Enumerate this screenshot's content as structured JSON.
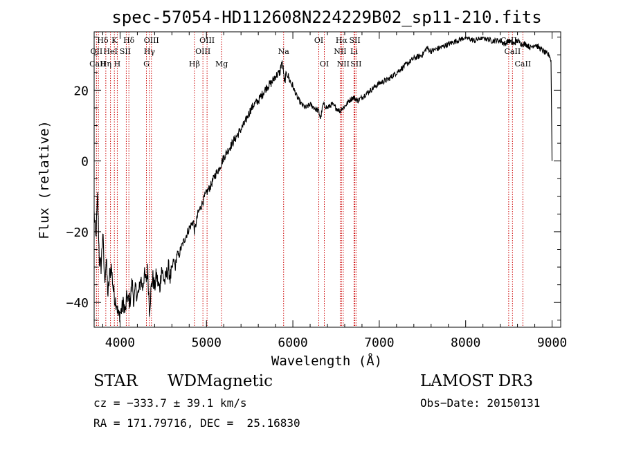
{
  "chart_data": {
    "type": "line",
    "title": "spec-57054-HD112608N224229B02_sp11-210.fits",
    "xlabel": "Wavelength (Å)",
    "ylabel": "Flux (relative)",
    "xlim": [
      3700,
      9100
    ],
    "ylim": [
      -47,
      36.5
    ],
    "x_ticks": [
      4000,
      5000,
      6000,
      7000,
      8000,
      9000
    ],
    "x_tick_labels": [
      "4000",
      "5000",
      "6000",
      "7000",
      "8000",
      "9000"
    ],
    "y_ticks": [
      -40,
      -20,
      0,
      20
    ],
    "y_tick_labels": [
      "−40",
      "−20",
      "0",
      "20"
    ],
    "grid": false,
    "series": [
      {
        "name": "spectrum",
        "color": "#000000",
        "x": [
          3700,
          3720,
          3740,
          3760,
          3780,
          3800,
          3820,
          3840,
          3860,
          3880,
          3900,
          3920,
          3940,
          3960,
          3980,
          4000,
          4020,
          4040,
          4060,
          4080,
          4100,
          4120,
          4140,
          4160,
          4180,
          4200,
          4220,
          4240,
          4260,
          4280,
          4300,
          4320,
          4340,
          4360,
          4380,
          4400,
          4420,
          4440,
          4460,
          4480,
          4500,
          4520,
          4540,
          4560,
          4580,
          4600,
          4620,
          4640,
          4660,
          4680,
          4700,
          4750,
          4800,
          4850,
          4861,
          4900,
          4950,
          5000,
          5050,
          5100,
          5150,
          5200,
          5250,
          5300,
          5350,
          5400,
          5450,
          5500,
          5550,
          5600,
          5650,
          5700,
          5750,
          5800,
          5850,
          5870,
          5890,
          5900,
          5910,
          5930,
          5960,
          6000,
          6050,
          6100,
          6150,
          6200,
          6250,
          6300,
          6320,
          6350,
          6400,
          6450,
          6500,
          6550,
          6563,
          6580,
          6620,
          6650,
          6700,
          6750,
          6800,
          6850,
          6900,
          6950,
          7000,
          7100,
          7200,
          7300,
          7400,
          7500,
          7550,
          7600,
          7700,
          7800,
          7900,
          8000,
          8100,
          8200,
          8300,
          8400,
          8450,
          8500,
          8550,
          8600,
          8650,
          8700,
          8750,
          8800,
          8850,
          8900,
          8950,
          8970,
          8990,
          8995,
          9000
        ],
        "y": [
          -15,
          -22,
          -10,
          -28,
          -30,
          -20,
          -34,
          -28,
          -38,
          -32,
          -30,
          -36,
          -39,
          -40,
          -44,
          -43,
          -42,
          -40,
          -43,
          -38,
          -40,
          -39,
          -34,
          -40,
          -36,
          -38,
          -37,
          -33,
          -36,
          -32,
          -34,
          -31,
          -42,
          -36,
          -33,
          -36,
          -32,
          -35,
          -36,
          -30,
          -33,
          -34,
          -32,
          -30,
          -33,
          -31,
          -28,
          -30,
          -26,
          -27,
          -25,
          -22,
          -19,
          -17,
          -20,
          -15,
          -12,
          -9,
          -7,
          -4,
          -2,
          1,
          3,
          5,
          7,
          9,
          11,
          14,
          16,
          17,
          19,
          21,
          22,
          24,
          25,
          28,
          26,
          22,
          23,
          25,
          23,
          21,
          18,
          16,
          15,
          16,
          15,
          14,
          12,
          16,
          15,
          16,
          15,
          14,
          15,
          15,
          16,
          17,
          18,
          17,
          18,
          19,
          20,
          21,
          22,
          23,
          25,
          27,
          29,
          30,
          32,
          31,
          32,
          33,
          34,
          35,
          34,
          35,
          34,
          34,
          33,
          34,
          33,
          34,
          33,
          33,
          32,
          33,
          32,
          31,
          30,
          30,
          28,
          12,
          0
        ]
      }
    ],
    "lines": [
      {
        "name": "OII",
        "wavelength": 3727
      },
      {
        "name": "Hθ",
        "wavelength": 3750
      },
      {
        "name": "Hη",
        "wavelength": 3835
      },
      {
        "name": "Hδ",
        "wavelength": 4102
      },
      {
        "name": "HeI",
        "wavelength": 3889
      },
      {
        "name": "SII",
        "wavelength": 4072
      },
      {
        "name": "K",
        "wavelength": 3934
      },
      {
        "name": "H",
        "wavelength": 3968
      },
      {
        "name": "Hγ",
        "wavelength": 4340
      },
      {
        "name": "G",
        "wavelength": 4305
      },
      {
        "name": "OIII",
        "wavelength": 4363
      },
      {
        "name": "Hβ",
        "wavelength": 4861
      },
      {
        "name": "OIII",
        "wavelength": 4959
      },
      {
        "name": "OIII",
        "wavelength": 5007
      },
      {
        "name": "Mg",
        "wavelength": 5175
      },
      {
        "name": "Na",
        "wavelength": 5893
      },
      {
        "name": "OI",
        "wavelength": 6300
      },
      {
        "name": "OI",
        "wavelength": 6364
      },
      {
        "name": "Hα",
        "wavelength": 6563
      },
      {
        "name": "NII",
        "wavelength": 6548
      },
      {
        "name": "NII",
        "wavelength": 6583
      },
      {
        "name": "Li",
        "wavelength": 6708
      },
      {
        "name": "SII",
        "wavelength": 6717
      },
      {
        "name": "SII",
        "wavelength": 6731
      },
      {
        "name": "CaII",
        "wavelength": 8498
      },
      {
        "name": "CaII",
        "wavelength": 8542
      },
      {
        "name": "CaII",
        "wavelength": 8662
      }
    ],
    "line_labels": [
      {
        "text": "Hδ",
        "wavelength": 3800,
        "row": 0
      },
      {
        "text": "K",
        "wavelength": 3934,
        "row": 0
      },
      {
        "text": "Hδ",
        "wavelength": 4102,
        "row": 0
      },
      {
        "text": "OIII",
        "wavelength": 4363,
        "row": 0
      },
      {
        "text": "OIII",
        "wavelength": 5007,
        "row": 0
      },
      {
        "text": "OI",
        "wavelength": 6300,
        "row": 0
      },
      {
        "text": "Hα",
        "wavelength": 6563,
        "row": 0
      },
      {
        "text": "SII",
        "wavelength": 6717,
        "row": 0
      },
      {
        "text": "CaII",
        "wavelength": 8498,
        "row": 0
      },
      {
        "text": "OII",
        "wavelength": 3727,
        "row": 1
      },
      {
        "text": "HeI",
        "wavelength": 3889,
        "row": 1
      },
      {
        "text": "SII",
        "wavelength": 4060,
        "row": 1
      },
      {
        "text": "Hγ",
        "wavelength": 4340,
        "row": 1
      },
      {
        "text": "OIII",
        "wavelength": 4959,
        "row": 1
      },
      {
        "text": "Na",
        "wavelength": 5893,
        "row": 1
      },
      {
        "text": "NII",
        "wavelength": 6548,
        "row": 1
      },
      {
        "text": "Li",
        "wavelength": 6708,
        "row": 1
      },
      {
        "text": "CaII",
        "wavelength": 8542,
        "row": 1
      },
      {
        "text": "CaII",
        "wavelength": 3740,
        "row": 2
      },
      {
        "text": "Hη",
        "wavelength": 3835,
        "row": 2
      },
      {
        "text": "H",
        "wavelength": 3968,
        "row": 2
      },
      {
        "text": "G",
        "wavelength": 4305,
        "row": 2
      },
      {
        "text": "Hβ",
        "wavelength": 4861,
        "row": 2
      },
      {
        "text": "Mg",
        "wavelength": 5175,
        "row": 2
      },
      {
        "text": "OI",
        "wavelength": 6364,
        "row": 2
      },
      {
        "text": "NII",
        "wavelength": 6583,
        "row": 2
      },
      {
        "text": "SII",
        "wavelength": 6731,
        "row": 2
      },
      {
        "text": "CaII",
        "wavelength": 8662,
        "row": 2
      }
    ],
    "line_color": "#cc0000"
  },
  "info": {
    "object_class": "STAR",
    "subclass": "WDMagnetic",
    "survey": "LAMOST DR3",
    "cz": "cz = −333.7 ± 39.1 km/s",
    "obs_date": "Obs−Date: 20150131",
    "radec": "RA = 171.79716, DEC =  25.16830"
  }
}
